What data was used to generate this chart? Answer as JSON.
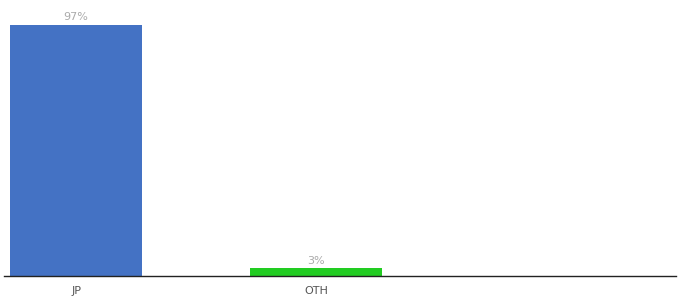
{
  "categories": [
    "JP",
    "OTH"
  ],
  "values": [
    97,
    3
  ],
  "bar_colors": [
    "#4472c4",
    "#22cc22"
  ],
  "value_labels": [
    "97%",
    "3%"
  ],
  "ylim": [
    0,
    105
  ],
  "background_color": "#ffffff",
  "label_color": "#aaaaaa",
  "label_fontsize": 8,
  "tick_fontsize": 8,
  "bar_width": 0.55,
  "xlim": [
    -0.3,
    2.5
  ]
}
